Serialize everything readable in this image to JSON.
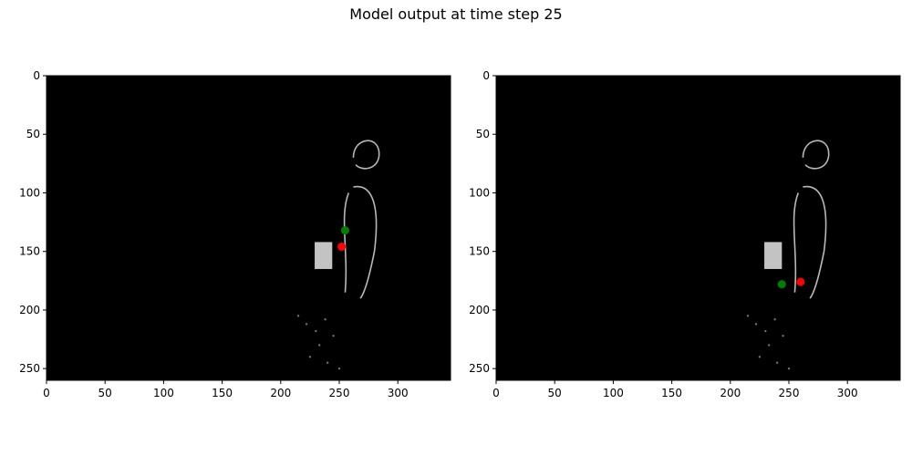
{
  "title": "Model output at time step 25",
  "colors": {
    "background": "#000000",
    "silhouette": "#d9d9d9",
    "green": "#008000",
    "red": "#ff0000"
  },
  "chart_data": [
    {
      "type": "scatter",
      "image_background": "black",
      "xlim": [
        0,
        345
      ],
      "ylim": [
        260,
        0
      ],
      "xticks": [
        0,
        50,
        100,
        150,
        200,
        250,
        300
      ],
      "yticks": [
        0,
        50,
        100,
        150,
        200,
        250
      ],
      "series": [
        {
          "color": "#008000",
          "x": [
            255
          ],
          "y": [
            132
          ]
        },
        {
          "color": "#ff0000",
          "x": [
            252
          ],
          "y": [
            146
          ]
        }
      ]
    },
    {
      "type": "scatter",
      "image_background": "black",
      "xlim": [
        0,
        345
      ],
      "ylim": [
        260,
        0
      ],
      "xticks": [
        0,
        50,
        100,
        150,
        200,
        250,
        300
      ],
      "yticks": [
        0,
        50,
        100,
        150,
        200,
        250
      ],
      "series": [
        {
          "color": "#008000",
          "x": [
            244
          ],
          "y": [
            178
          ]
        },
        {
          "color": "#ff0000",
          "x": [
            260
          ],
          "y": [
            176
          ]
        }
      ]
    }
  ]
}
